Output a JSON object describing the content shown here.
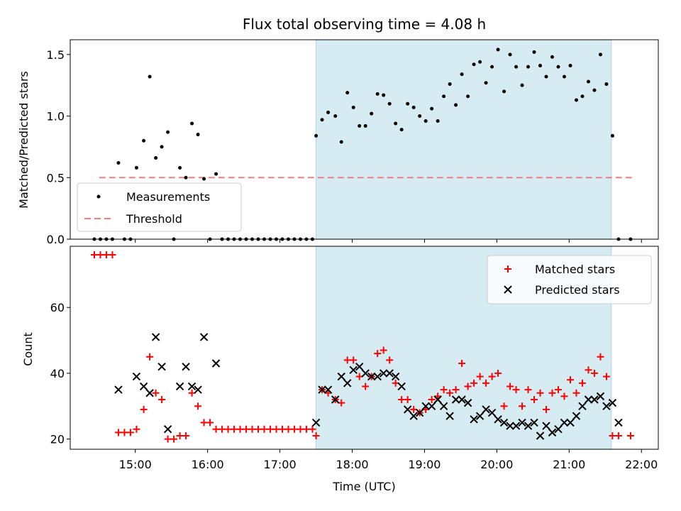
{
  "chart_data": [
    {
      "type": "scatter",
      "title": "Flux total observing time = 4.08 h",
      "xlabel": "",
      "ylabel": "Matched/Predicted stars",
      "xlim": [
        "14:06",
        "22:14"
      ],
      "ylim": [
        0,
        1.62
      ],
      "yticks": [
        0.0,
        0.5,
        1.0,
        1.5
      ],
      "ytick_labels": [
        "0.0",
        "0.5",
        "1.0",
        "1.5"
      ],
      "xticks": [
        "15:00",
        "16:00",
        "17:00",
        "18:00",
        "19:00",
        "20:00",
        "21:00",
        "22:00"
      ],
      "x_tick_labels_shown": false,
      "shaded_interval": {
        "start": "17:30",
        "end": "21:35",
        "color": "#add8e6"
      },
      "threshold": {
        "name": "Threshold",
        "value": 0.5,
        "start": "14:30",
        "end": "21:53",
        "color": "#f08080"
      },
      "legend": {
        "position": "lower left",
        "entries": [
          "Measurements",
          "Threshold"
        ]
      },
      "series": [
        {
          "name": "Measurements",
          "color": "#000000",
          "marker": "dot",
          "points": [
            [
              "14:26",
              0
            ],
            [
              "14:31",
              0
            ],
            [
              "14:36",
              0
            ],
            [
              "14:41",
              0
            ],
            [
              "14:46",
              0.62
            ],
            [
              "14:51",
              0
            ],
            [
              "14:56",
              0
            ],
            [
              "15:01",
              0.58
            ],
            [
              "15:07",
              0.8
            ],
            [
              "15:12",
              1.32
            ],
            [
              "15:17",
              0.66
            ],
            [
              "15:22",
              0.75
            ],
            [
              "15:27",
              0.87
            ],
            [
              "15:32",
              0
            ],
            [
              "15:37",
              0.58
            ],
            [
              "15:42",
              0.5
            ],
            [
              "15:47",
              0.94
            ],
            [
              "15:52",
              0.85
            ],
            [
              "15:57",
              0.49
            ],
            [
              "16:02",
              0
            ],
            [
              "16:07",
              0.53
            ],
            [
              "16:12",
              0
            ],
            [
              "16:17",
              0
            ],
            [
              "16:22",
              0
            ],
            [
              "16:27",
              0
            ],
            [
              "16:32",
              0
            ],
            [
              "16:37",
              0
            ],
            [
              "16:42",
              0
            ],
            [
              "16:47",
              0
            ],
            [
              "16:52",
              0
            ],
            [
              "16:57",
              0
            ],
            [
              "17:02",
              0
            ],
            [
              "17:07",
              0
            ],
            [
              "17:12",
              0
            ],
            [
              "17:17",
              0
            ],
            [
              "17:22",
              0
            ],
            [
              "17:27",
              0
            ],
            [
              "17:30",
              0.84
            ],
            [
              "17:35",
              0.97
            ],
            [
              "17:40",
              1.03
            ],
            [
              "17:46",
              1.0
            ],
            [
              "17:51",
              0.79
            ],
            [
              "17:56",
              1.19
            ],
            [
              "18:01",
              1.07
            ],
            [
              "18:06",
              0.92
            ],
            [
              "18:11",
              0.92
            ],
            [
              "18:16",
              1.02
            ],
            [
              "18:21",
              1.18
            ],
            [
              "18:26",
              1.17
            ],
            [
              "18:31",
              1.1
            ],
            [
              "18:36",
              0.94
            ],
            [
              "18:41",
              0.89
            ],
            [
              "18:46",
              1.1
            ],
            [
              "18:51",
              1.07
            ],
            [
              "18:56",
              1.0
            ],
            [
              "19:01",
              0.96
            ],
            [
              "19:06",
              1.06
            ],
            [
              "19:11",
              0.96
            ],
            [
              "19:16",
              1.16
            ],
            [
              "19:21",
              1.26
            ],
            [
              "19:26",
              1.09
            ],
            [
              "19:31",
              1.34
            ],
            [
              "19:36",
              1.16
            ],
            [
              "19:41",
              1.42
            ],
            [
              "19:46",
              1.44
            ],
            [
              "19:51",
              1.27
            ],
            [
              "19:56",
              1.4
            ],
            [
              "20:01",
              1.54
            ],
            [
              "20:06",
              1.2
            ],
            [
              "20:11",
              1.5
            ],
            [
              "20:16",
              1.4
            ],
            [
              "20:21",
              1.25
            ],
            [
              "20:26",
              1.4
            ],
            [
              "20:31",
              1.52
            ],
            [
              "20:36",
              1.41
            ],
            [
              "20:41",
              1.32
            ],
            [
              "20:46",
              1.48
            ],
            [
              "20:51",
              1.4
            ],
            [
              "20:56",
              1.32
            ],
            [
              "21:01",
              1.41
            ],
            [
              "21:06",
              1.13
            ],
            [
              "21:11",
              1.16
            ],
            [
              "21:16",
              1.28
            ],
            [
              "21:21",
              1.21
            ],
            [
              "21:26",
              1.5
            ],
            [
              "21:31",
              1.26
            ],
            [
              "21:36",
              0.84
            ],
            [
              "21:41",
              0
            ],
            [
              "21:51",
              0
            ]
          ]
        }
      ]
    },
    {
      "type": "scatter",
      "title": "",
      "xlabel": "Time (UTC)",
      "ylabel": "Count",
      "xlim": [
        "14:06",
        "22:14"
      ],
      "ylim": [
        16.9,
        78.6
      ],
      "yticks": [
        20,
        40,
        60
      ],
      "ytick_labels": [
        "20",
        "40",
        "60"
      ],
      "xticks": [
        "15:00",
        "16:00",
        "17:00",
        "18:00",
        "19:00",
        "20:00",
        "21:00",
        "22:00"
      ],
      "xtick_labels": [
        "15:00",
        "16:00",
        "17:00",
        "18:00",
        "19:00",
        "20:00",
        "21:00",
        "22:00"
      ],
      "shaded_interval": {
        "start": "17:30",
        "end": "21:35",
        "color": "#add8e6"
      },
      "legend": {
        "position": "upper right",
        "entries": [
          "Matched stars",
          "Predicted stars"
        ]
      },
      "series": [
        {
          "name": "Matched stars",
          "color": "#ff0000",
          "marker": "plus",
          "points": [
            [
              "14:26",
              76
            ],
            [
              "14:31",
              76
            ],
            [
              "14:36",
              76
            ],
            [
              "14:41",
              76
            ],
            [
              "14:46",
              22
            ],
            [
              "14:51",
              22
            ],
            [
              "14:56",
              22
            ],
            [
              "15:01",
              23
            ],
            [
              "15:07",
              29
            ],
            [
              "15:12",
              45
            ],
            [
              "15:17",
              34
            ],
            [
              "15:22",
              32
            ],
            [
              "15:27",
              20
            ],
            [
              "15:32",
              20
            ],
            [
              "15:37",
              21
            ],
            [
              "15:42",
              21
            ],
            [
              "15:47",
              34
            ],
            [
              "15:52",
              30
            ],
            [
              "15:57",
              25
            ],
            [
              "16:02",
              25
            ],
            [
              "16:07",
              23
            ],
            [
              "16:12",
              23
            ],
            [
              "16:17",
              23
            ],
            [
              "16:22",
              23
            ],
            [
              "16:27",
              23
            ],
            [
              "16:32",
              23
            ],
            [
              "16:37",
              23
            ],
            [
              "16:42",
              23
            ],
            [
              "16:47",
              23
            ],
            [
              "16:52",
              23
            ],
            [
              "16:57",
              23
            ],
            [
              "17:02",
              23
            ],
            [
              "17:07",
              23
            ],
            [
              "17:12",
              23
            ],
            [
              "17:17",
              23
            ],
            [
              "17:22",
              23
            ],
            [
              "17:27",
              23
            ],
            [
              "17:30",
              21
            ],
            [
              "17:35",
              35
            ],
            [
              "17:40",
              34
            ],
            [
              "17:46",
              32
            ],
            [
              "17:51",
              31
            ],
            [
              "17:56",
              44
            ],
            [
              "18:01",
              44
            ],
            [
              "18:06",
              39
            ],
            [
              "18:11",
              36
            ],
            [
              "18:16",
              39
            ],
            [
              "18:21",
              46
            ],
            [
              "18:26",
              47
            ],
            [
              "18:31",
              44
            ],
            [
              "18:36",
              37
            ],
            [
              "18:41",
              32
            ],
            [
              "18:46",
              32
            ],
            [
              "18:51",
              29
            ],
            [
              "18:56",
              28
            ],
            [
              "19:01",
              29
            ],
            [
              "19:06",
              32
            ],
            [
              "19:11",
              33
            ],
            [
              "19:16",
              35
            ],
            [
              "19:21",
              34
            ],
            [
              "19:26",
              35
            ],
            [
              "19:31",
              43
            ],
            [
              "19:36",
              36
            ],
            [
              "19:41",
              37
            ],
            [
              "19:46",
              39
            ],
            [
              "19:51",
              37
            ],
            [
              "19:56",
              39
            ],
            [
              "20:01",
              40
            ],
            [
              "20:06",
              30
            ],
            [
              "20:11",
              36
            ],
            [
              "20:16",
              35
            ],
            [
              "20:21",
              30
            ],
            [
              "20:26",
              35
            ],
            [
              "20:31",
              32
            ],
            [
              "20:36",
              34
            ],
            [
              "20:41",
              29
            ],
            [
              "20:46",
              34
            ],
            [
              "20:51",
              35
            ],
            [
              "20:56",
              33
            ],
            [
              "21:01",
              38
            ],
            [
              "21:06",
              34
            ],
            [
              "21:11",
              37
            ],
            [
              "21:16",
              41
            ],
            [
              "21:21",
              40
            ],
            [
              "21:26",
              45
            ],
            [
              "21:31",
              39
            ],
            [
              "21:36",
              21
            ],
            [
              "21:41",
              21
            ],
            [
              "21:51",
              21
            ]
          ]
        },
        {
          "name": "Predicted stars",
          "color": "#000000",
          "marker": "x",
          "points": [
            [
              "14:46",
              35
            ],
            [
              "15:01",
              39
            ],
            [
              "15:07",
              36
            ],
            [
              "15:12",
              34
            ],
            [
              "15:17",
              51
            ],
            [
              "15:22",
              42
            ],
            [
              "15:27",
              23
            ],
            [
              "15:37",
              36
            ],
            [
              "15:42",
              42
            ],
            [
              "15:47",
              36
            ],
            [
              "15:52",
              35
            ],
            [
              "15:57",
              51
            ],
            [
              "16:07",
              43
            ],
            [
              "17:30",
              25
            ],
            [
              "17:35",
              35
            ],
            [
              "17:40",
              35
            ],
            [
              "17:46",
              32
            ],
            [
              "17:51",
              39
            ],
            [
              "17:56",
              37
            ],
            [
              "18:01",
              41
            ],
            [
              "18:06",
              42
            ],
            [
              "18:11",
              40
            ],
            [
              "18:16",
              39
            ],
            [
              "18:21",
              39
            ],
            [
              "18:26",
              40
            ],
            [
              "18:31",
              40
            ],
            [
              "18:36",
              39
            ],
            [
              "18:41",
              36
            ],
            [
              "18:46",
              29
            ],
            [
              "18:51",
              27
            ],
            [
              "18:56",
              28
            ],
            [
              "19:01",
              30
            ],
            [
              "19:06",
              30
            ],
            [
              "19:11",
              32
            ],
            [
              "19:16",
              30
            ],
            [
              "19:21",
              27
            ],
            [
              "19:26",
              32
            ],
            [
              "19:31",
              32
            ],
            [
              "19:36",
              31
            ],
            [
              "19:41",
              26
            ],
            [
              "19:46",
              27
            ],
            [
              "19:51",
              29
            ],
            [
              "19:56",
              28
            ],
            [
              "20:01",
              26
            ],
            [
              "20:06",
              25
            ],
            [
              "20:11",
              24
            ],
            [
              "20:16",
              24
            ],
            [
              "20:21",
              25
            ],
            [
              "20:26",
              24
            ],
            [
              "20:31",
              25
            ],
            [
              "20:36",
              21
            ],
            [
              "20:41",
              24
            ],
            [
              "20:46",
              22
            ],
            [
              "20:51",
              23
            ],
            [
              "20:56",
              25
            ],
            [
              "21:01",
              25
            ],
            [
              "21:06",
              27
            ],
            [
              "21:11",
              30
            ],
            [
              "21:16",
              32
            ],
            [
              "21:21",
              32
            ],
            [
              "21:26",
              33
            ],
            [
              "21:31",
              30
            ],
            [
              "21:36",
              31
            ],
            [
              "21:41",
              25
            ]
          ]
        }
      ]
    }
  ]
}
